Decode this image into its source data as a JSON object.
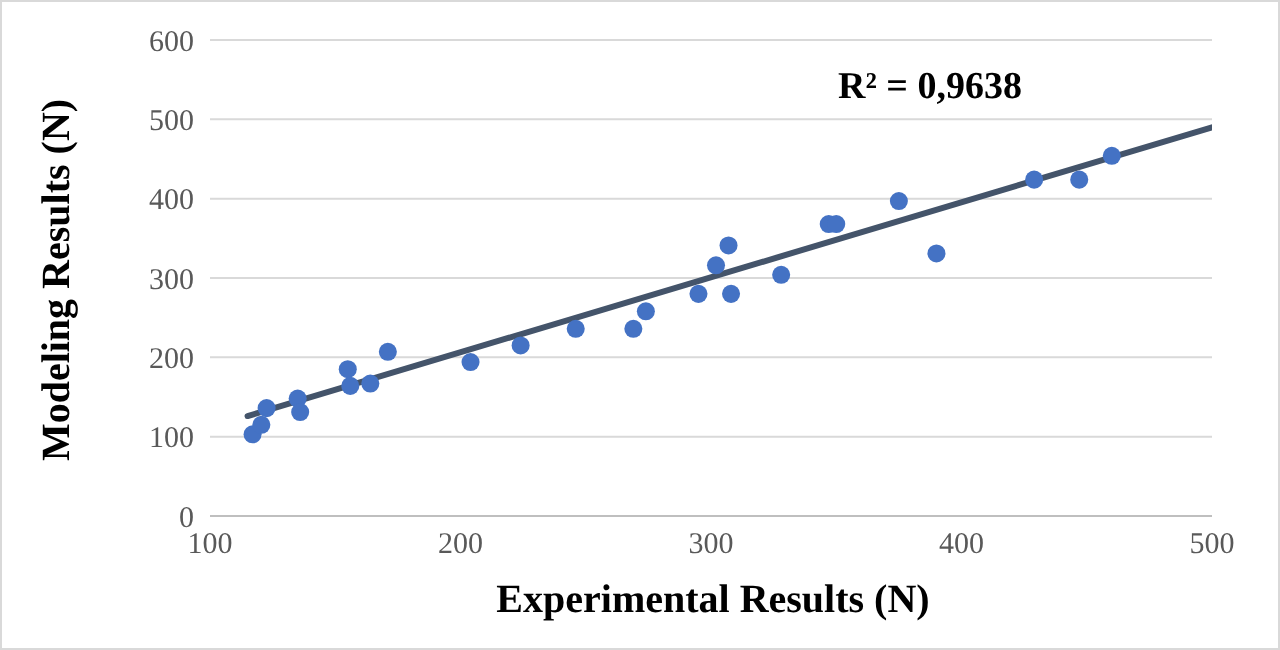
{
  "chart_data": {
    "type": "scatter",
    "xlabel": "Experimental Results (N)",
    "ylabel": "Modeling Results (N)",
    "annotations": [
      "R² = 0,9638"
    ],
    "xlim": [
      100,
      500
    ],
    "xticks": [
      100,
      200,
      300,
      400,
      500
    ],
    "ylim": [
      0,
      600
    ],
    "yticks": [
      0,
      100,
      200,
      300,
      400,
      500,
      600
    ],
    "grid": "y",
    "marker": "circle",
    "series": [
      {
        "color": "#4472c4",
        "x": [
          117,
          120.5,
          122.6,
          135,
          136,
          155,
          156,
          164,
          171,
          204,
          224,
          246,
          269,
          274,
          295,
          302,
          307,
          308,
          328,
          347,
          350,
          375,
          390,
          429,
          447,
          460
        ],
        "values": [
          103,
          115,
          136,
          148,
          131,
          185,
          164,
          167,
          207,
          194,
          215,
          236,
          236,
          258,
          280,
          316,
          341,
          280,
          304,
          368,
          368,
          397,
          331,
          424,
          424,
          454
        ]
      },
      {
        "type": "line",
        "color": "#44546a",
        "marker": "none",
        "x": [
          115,
          500
        ],
        "values": [
          126,
          490
        ]
      }
    ]
  }
}
